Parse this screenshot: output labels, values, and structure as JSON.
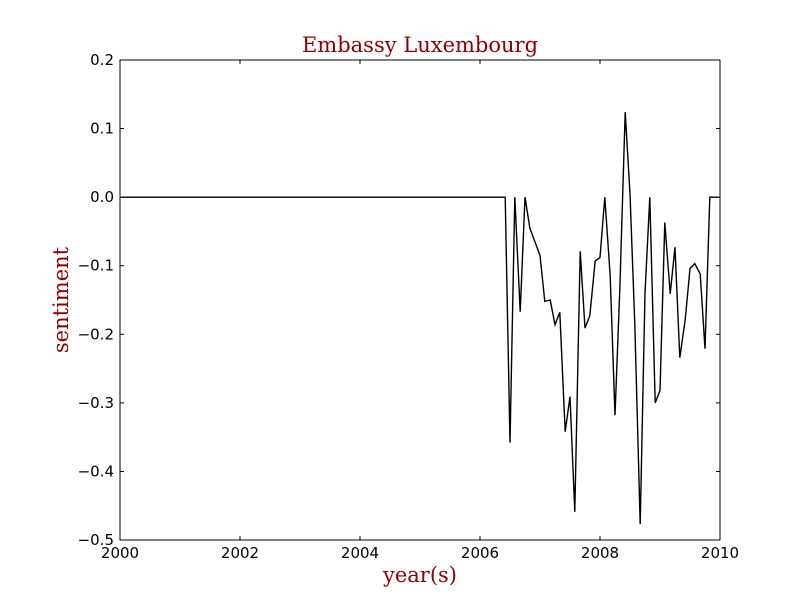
{
  "colors": {
    "title": "#8b0000",
    "axis_label": "#8b0000",
    "line": "#000000",
    "frame": "#000000",
    "background": "#ffffff"
  },
  "chart_data": {
    "type": "line",
    "title": "Embassy Luxembourg",
    "xlabel": "year(s)",
    "ylabel": "sentiment",
    "xlim": [
      2000,
      2010
    ],
    "ylim": [
      -0.5,
      0.2
    ],
    "grid": false,
    "legend": "none",
    "xticks": [
      2000,
      2002,
      2004,
      2006,
      2008,
      2010
    ],
    "xtick_labels": [
      "2000",
      "2002",
      "2004",
      "2006",
      "2008",
      "2010"
    ],
    "yticks": [
      0.2,
      0.1,
      0.0,
      -0.1,
      -0.2,
      -0.3,
      -0.4,
      -0.5
    ],
    "ytick_labels": [
      "0.2",
      "0.1",
      "0.0",
      "−0.1",
      "−0.2",
      "−0.3",
      "−0.4",
      "−0.5"
    ],
    "series": [
      {
        "x": [
          2000.0,
          2006.42,
          2006.5,
          2006.58,
          2006.67,
          2006.75,
          2006.83,
          2007.0,
          2007.08,
          2007.17,
          2007.25,
          2007.33,
          2007.42,
          2007.5,
          2007.58,
          2007.67,
          2007.75,
          2007.83,
          2007.92,
          2008.0,
          2008.08,
          2008.17,
          2008.25,
          2008.33,
          2008.42,
          2008.5,
          2008.58,
          2008.67,
          2008.75,
          2008.83,
          2008.92,
          2009.0,
          2009.08,
          2009.17,
          2009.25,
          2009.33,
          2009.42,
          2009.5,
          2009.58,
          2009.67,
          2009.75,
          2009.83,
          2009.92,
          2010.0
        ],
        "y": [
          0.0,
          0.0,
          -0.358,
          0.0,
          -0.167,
          0.0,
          -0.045,
          -0.085,
          -0.152,
          -0.15,
          -0.186,
          -0.168,
          -0.342,
          -0.291,
          -0.459,
          -0.079,
          -0.191,
          -0.173,
          -0.093,
          -0.088,
          0.0,
          -0.115,
          -0.318,
          -0.135,
          0.124,
          0.005,
          -0.185,
          -0.477,
          -0.14,
          0.0,
          -0.3,
          -0.282,
          -0.037,
          -0.141,
          -0.073,
          -0.234,
          -0.179,
          -0.104,
          -0.097,
          -0.112,
          -0.221,
          0.0,
          0.0,
          0.0
        ]
      }
    ]
  }
}
